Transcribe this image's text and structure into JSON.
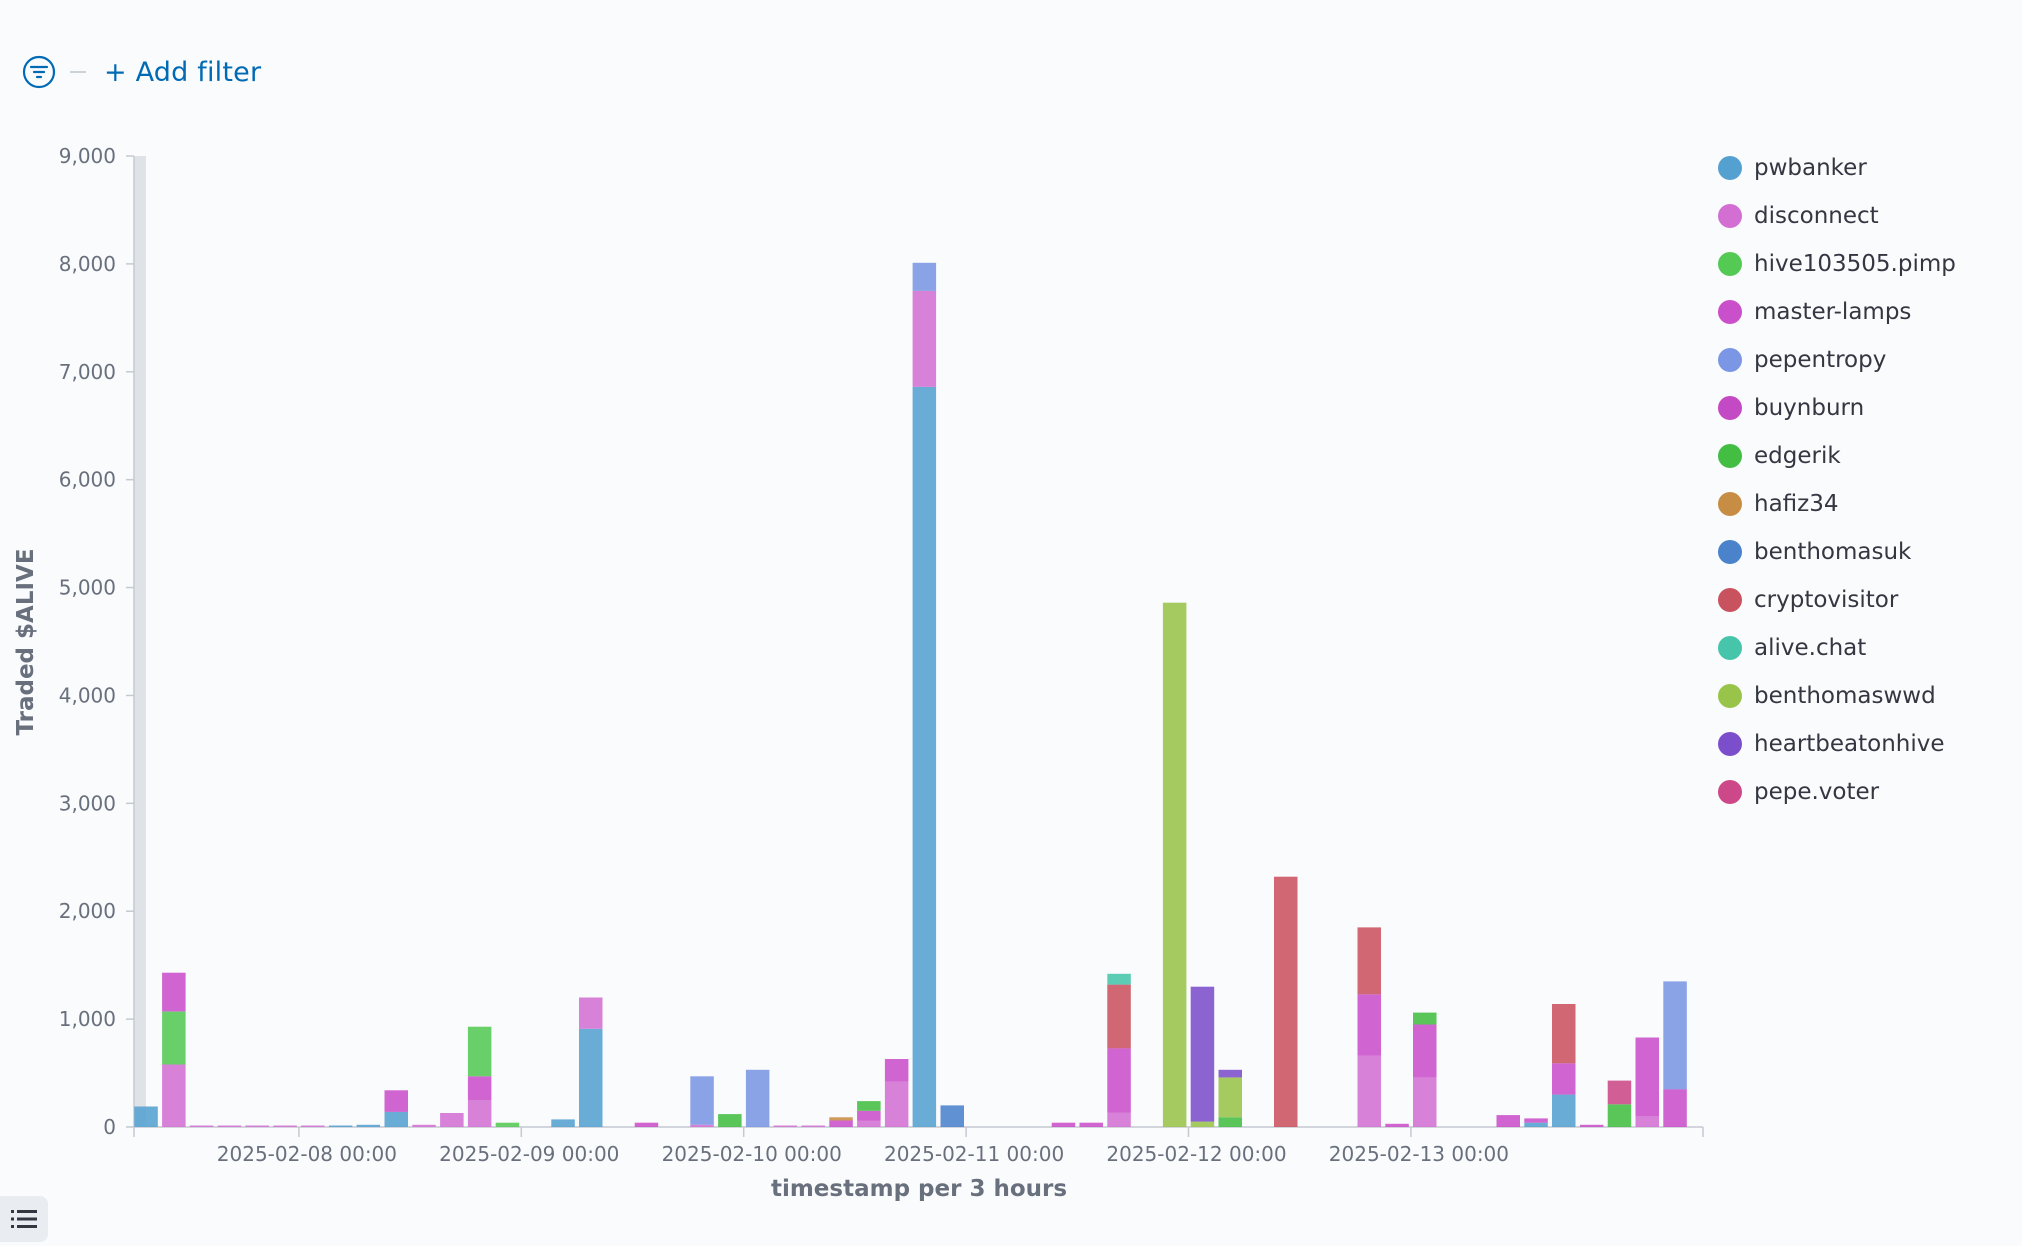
{
  "filter_bar": {
    "add_filter_label": "+ Add filter",
    "filter_icon": "filter-icon"
  },
  "legend_toggle": {
    "icon": "list-icon"
  },
  "chart_data": {
    "type": "bar",
    "stacked": true,
    "xlabel": "timestamp per 3 hours",
    "ylabel": "Traded $ALIVE",
    "ylim": [
      0,
      9000
    ],
    "yticks": [
      0,
      1000,
      2000,
      3000,
      4000,
      5000,
      6000,
      7000,
      8000,
      9000
    ],
    "ytick_labels": [
      "0",
      "1,000",
      "2,000",
      "3,000",
      "4,000",
      "5,000",
      "6,000",
      "7,000",
      "8,000",
      "9,000"
    ],
    "xticks": [
      "2025-02-08 00:00",
      "2025-02-09 00:00",
      "2025-02-10 00:00",
      "2025-02-11 00:00",
      "2025-02-12 00:00",
      "2025-02-13 00:00"
    ],
    "legend_position": "right",
    "grid": false,
    "series": [
      {
        "name": "pwbanker",
        "color": "#54a0d0"
      },
      {
        "name": "disconnect",
        "color": "#d36fd3"
      },
      {
        "name": "hive103505.pimp",
        "color": "#54c954"
      },
      {
        "name": "master-lamps",
        "color": "#ca4fca"
      },
      {
        "name": "pepentropy",
        "color": "#7a96e4"
      },
      {
        "name": "buynburn",
        "color": "#c449c4"
      },
      {
        "name": "edgerik",
        "color": "#43be43"
      },
      {
        "name": "hafiz34",
        "color": "#c88d45"
      },
      {
        "name": "benthomasuk",
        "color": "#4a82cc"
      },
      {
        "name": "cryptovisitor",
        "color": "#c9525f"
      },
      {
        "name": "alive.chat",
        "color": "#47c5ab"
      },
      {
        "name": "benthomaswwd",
        "color": "#98c44a"
      },
      {
        "name": "heartbeatonhive",
        "color": "#7b4fcc"
      },
      {
        "name": "pepe.voter",
        "color": "#cc4888"
      }
    ],
    "bars": [
      {
        "t": "2025-02-07 06:00",
        "stack": [
          {
            "s": "pwbanker",
            "v": 190
          }
        ]
      },
      {
        "t": "2025-02-07 09:00",
        "stack": [
          {
            "s": "disconnect",
            "v": 580
          },
          {
            "s": "hive103505.pimp",
            "v": 490
          },
          {
            "s": "master-lamps",
            "v": 360
          }
        ]
      },
      {
        "t": "2025-02-07 12:00",
        "stack": [
          {
            "s": "disconnect",
            "v": 10
          }
        ]
      },
      {
        "t": "2025-02-07 15:00",
        "stack": [
          {
            "s": "disconnect",
            "v": 2
          }
        ]
      },
      {
        "t": "2025-02-07 18:00",
        "stack": [
          {
            "s": "disconnect",
            "v": 2
          }
        ]
      },
      {
        "t": "2025-02-07 21:00",
        "stack": [
          {
            "s": "disconnect",
            "v": 2
          }
        ]
      },
      {
        "t": "2025-02-08 00:00",
        "stack": [
          {
            "s": "disconnect",
            "v": 2
          }
        ]
      },
      {
        "t": "2025-02-08 03:00",
        "stack": [
          {
            "s": "pwbanker",
            "v": 5
          }
        ]
      },
      {
        "t": "2025-02-08 06:00",
        "stack": [
          {
            "s": "pwbanker",
            "v": 20
          }
        ]
      },
      {
        "t": "2025-02-08 09:00",
        "stack": [
          {
            "s": "pwbanker",
            "v": 140
          },
          {
            "s": "master-lamps",
            "v": 200
          }
        ]
      },
      {
        "t": "2025-02-08 12:00",
        "stack": [
          {
            "s": "disconnect",
            "v": 20
          }
        ]
      },
      {
        "t": "2025-02-08 15:00",
        "stack": [
          {
            "s": "disconnect",
            "v": 130
          }
        ]
      },
      {
        "t": "2025-02-08 18:00",
        "stack": [
          {
            "s": "disconnect",
            "v": 250
          },
          {
            "s": "master-lamps",
            "v": 220
          },
          {
            "s": "hive103505.pimp",
            "v": 460
          }
        ]
      },
      {
        "t": "2025-02-08 21:00",
        "stack": [
          {
            "s": "hive103505.pimp",
            "v": 40
          }
        ]
      },
      {
        "t": "2025-02-09 03:00",
        "stack": [
          {
            "s": "pwbanker",
            "v": 70
          }
        ]
      },
      {
        "t": "2025-02-09 06:00",
        "stack": [
          {
            "s": "pwbanker",
            "v": 910
          },
          {
            "s": "disconnect",
            "v": 290
          }
        ]
      },
      {
        "t": "2025-02-09 12:00",
        "stack": [
          {
            "s": "master-lamps",
            "v": 40
          }
        ]
      },
      {
        "t": "2025-02-09 18:00",
        "stack": [
          {
            "s": "disconnect",
            "v": 20
          },
          {
            "s": "pepentropy",
            "v": 450
          }
        ]
      },
      {
        "t": "2025-02-09 21:00",
        "stack": [
          {
            "s": "edgerik",
            "v": 120
          }
        ]
      },
      {
        "t": "2025-02-10 00:00",
        "stack": [
          {
            "s": "pepentropy",
            "v": 530
          }
        ]
      },
      {
        "t": "2025-02-10 03:00",
        "stack": [
          {
            "s": "disconnect",
            "v": 2
          }
        ]
      },
      {
        "t": "2025-02-10 06:00",
        "stack": [
          {
            "s": "disconnect",
            "v": 2
          }
        ]
      },
      {
        "t": "2025-02-10 09:00",
        "stack": [
          {
            "s": "master-lamps",
            "v": 60
          },
          {
            "s": "hafiz34",
            "v": 30
          }
        ]
      },
      {
        "t": "2025-02-10 12:00",
        "stack": [
          {
            "s": "disconnect",
            "v": 60
          },
          {
            "s": "master-lamps",
            "v": 90
          },
          {
            "s": "edgerik",
            "v": 90
          }
        ]
      },
      {
        "t": "2025-02-10 15:00",
        "stack": [
          {
            "s": "disconnect",
            "v": 420
          },
          {
            "s": "master-lamps",
            "v": 210
          }
        ]
      },
      {
        "t": "2025-02-10 18:00",
        "stack": [
          {
            "s": "pwbanker",
            "v": 6860
          },
          {
            "s": "disconnect",
            "v": 890
          },
          {
            "s": "pepentropy",
            "v": 260
          }
        ]
      },
      {
        "t": "2025-02-10 21:00",
        "stack": [
          {
            "s": "benthomasuk",
            "v": 200
          }
        ]
      },
      {
        "t": "2025-02-11 09:00",
        "stack": [
          {
            "s": "master-lamps",
            "v": 40
          }
        ]
      },
      {
        "t": "2025-02-11 12:00",
        "stack": [
          {
            "s": "master-lamps",
            "v": 40
          }
        ]
      },
      {
        "t": "2025-02-11 15:00",
        "stack": [
          {
            "s": "disconnect",
            "v": 130
          },
          {
            "s": "master-lamps",
            "v": 600
          },
          {
            "s": "cryptovisitor",
            "v": 590
          },
          {
            "s": "alive.chat",
            "v": 100
          }
        ]
      },
      {
        "t": "2025-02-11 21:00",
        "stack": [
          {
            "s": "benthomaswwd",
            "v": 4860
          }
        ]
      },
      {
        "t": "2025-02-12 00:00",
        "stack": [
          {
            "s": "benthomaswwd",
            "v": 50
          },
          {
            "s": "heartbeatonhive",
            "v": 1250
          }
        ]
      },
      {
        "t": "2025-02-12 03:00",
        "stack": [
          {
            "s": "edgerik",
            "v": 90
          },
          {
            "s": "benthomaswwd",
            "v": 370
          },
          {
            "s": "heartbeatonhive",
            "v": 70
          }
        ]
      },
      {
        "t": "2025-02-12 09:00",
        "stack": [
          {
            "s": "cryptovisitor",
            "v": 2320
          }
        ]
      },
      {
        "t": "2025-02-12 18:00",
        "stack": [
          {
            "s": "disconnect",
            "v": 660
          },
          {
            "s": "master-lamps",
            "v": 570
          },
          {
            "s": "cryptovisitor",
            "v": 620
          }
        ]
      },
      {
        "t": "2025-02-12 21:00",
        "stack": [
          {
            "s": "master-lamps",
            "v": 30
          }
        ]
      },
      {
        "t": "2025-02-13 00:00",
        "stack": [
          {
            "s": "disconnect",
            "v": 460
          },
          {
            "s": "master-lamps",
            "v": 490
          },
          {
            "s": "edgerik",
            "v": 110
          }
        ]
      },
      {
        "t": "2025-02-13 09:00",
        "stack": [
          {
            "s": "master-lamps",
            "v": 110
          }
        ]
      },
      {
        "t": "2025-02-13 12:00",
        "stack": [
          {
            "s": "pwbanker",
            "v": 40
          },
          {
            "s": "master-lamps",
            "v": 40
          }
        ]
      },
      {
        "t": "2025-02-13 15:00",
        "stack": [
          {
            "s": "pwbanker",
            "v": 300
          },
          {
            "s": "master-lamps",
            "v": 290
          },
          {
            "s": "cryptovisitor",
            "v": 550
          }
        ]
      },
      {
        "t": "2025-02-13 18:00",
        "stack": [
          {
            "s": "master-lamps",
            "v": 20
          }
        ]
      },
      {
        "t": "2025-02-13 21:00",
        "stack": [
          {
            "s": "edgerik",
            "v": 210
          },
          {
            "s": "pepe.voter",
            "v": 220
          }
        ]
      },
      {
        "t": "2025-02-14 00:00",
        "stack": [
          {
            "s": "disconnect",
            "v": 100
          },
          {
            "s": "master-lamps",
            "v": 730
          }
        ]
      },
      {
        "t": "2025-02-14 03:00",
        "stack": [
          {
            "s": "master-lamps",
            "v": 350
          },
          {
            "s": "pepentropy",
            "v": 1000
          }
        ]
      }
    ]
  }
}
